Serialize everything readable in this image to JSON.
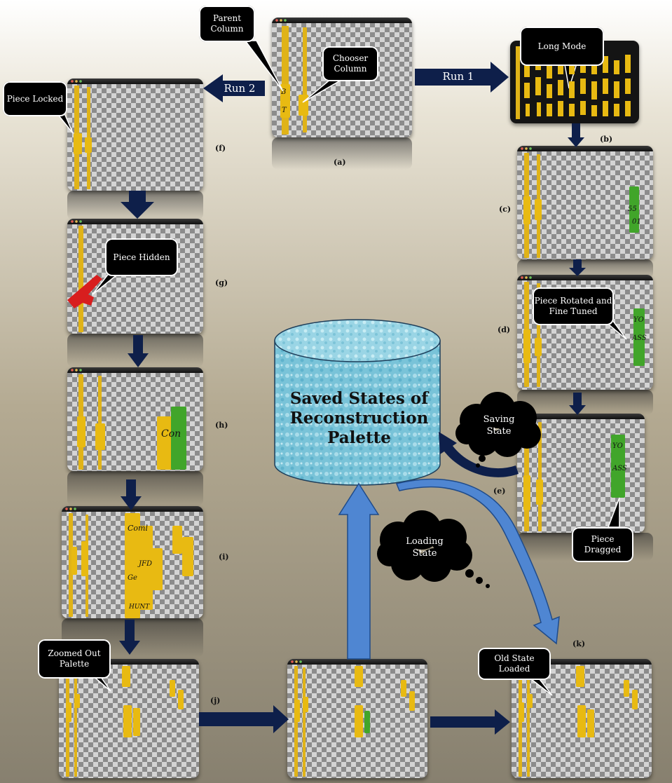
{
  "colors": {
    "piece": "#e8ba12",
    "green_piece": "#41a52a",
    "hidden_piece": "#d81e1e",
    "dark_arrow": "#0e1f4a",
    "blue_arrow": "#4a7ac8",
    "cylinder": "#7ec8dc"
  },
  "panels": {
    "a": {
      "label": "(a)",
      "glyphs": [
        "B",
        "T"
      ]
    },
    "b": {
      "label": "(b)"
    },
    "c": {
      "label": "(c)",
      "glyphs": [
        "55",
        "01"
      ]
    },
    "d": {
      "label": "(d)",
      "glyphs": [
        "YO",
        "ASS"
      ]
    },
    "e": {
      "label": "(e)",
      "glyphs": [
        "YO",
        "ASS"
      ]
    },
    "f": {
      "label": "(f)"
    },
    "g": {
      "label": "(g)"
    },
    "h": {
      "label": "(h)",
      "glyphs": [
        "Con"
      ]
    },
    "i": {
      "label": "(i)",
      "glyphs": [
        "Coml",
        "JFD",
        "Ge",
        "HUNT"
      ]
    },
    "j": {
      "label": "(j)"
    },
    "k": {
      "label": "(k)"
    }
  },
  "callouts": {
    "parent_column": "Parent Column",
    "chooser_column": "Chooser Column",
    "long_mode": "Long Mode",
    "piece_locked": "Piece Locked",
    "piece_hidden": "Piece Hidden",
    "piece_rotated": "Piece Rotated and Fine Tuned",
    "piece_dragged": "Piece Dragged",
    "zoomed_out": "Zoomed Out Palette",
    "old_state": "Old State Loaded"
  },
  "arrows": {
    "run1": "Run 1",
    "run2": "Run 2"
  },
  "clouds": {
    "saving": "Saving State",
    "loading": "Loading State"
  },
  "cylinder": {
    "title": "Saved States of Reconstruction Palette"
  }
}
